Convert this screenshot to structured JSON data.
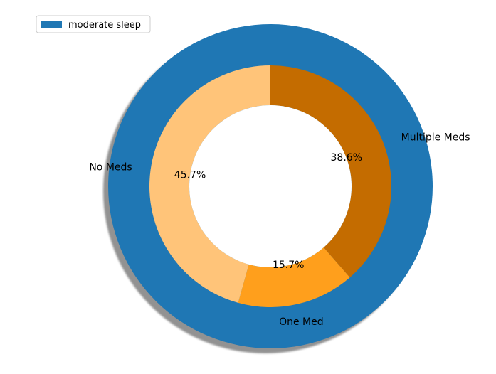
{
  "chart_data": {
    "type": "pie",
    "title": "",
    "legend": {
      "placement": "top-left",
      "entries": [
        {
          "label": "moderate sleep",
          "color": "#1f77b4"
        }
      ]
    },
    "outer_ring": {
      "series_name": "moderate sleep",
      "values": [
        100
      ],
      "color": "#1f77b4",
      "shadow": true
    },
    "inner_ring": {
      "categories": [
        "Multiple Meds",
        "One Med",
        "No Meds"
      ],
      "values": [
        38.6,
        15.7,
        45.7
      ],
      "value_labels": [
        "38.6%",
        "15.7%",
        "45.7%"
      ],
      "colors": [
        "#c46c00",
        "#ff9f1c",
        "#ffc479"
      ]
    }
  }
}
